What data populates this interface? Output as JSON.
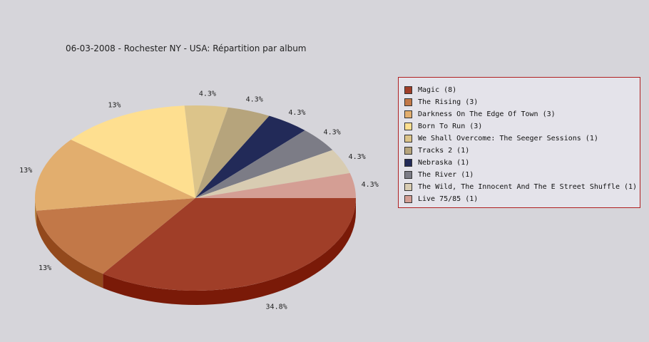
{
  "chart_data": {
    "type": "pie",
    "title": "06-03-2008 - Rochester NY - USA:  Répartition par album",
    "legend_position": "right",
    "slices": [
      {
        "label": "Magic (8)",
        "value": 8,
        "percent_label": "34.8%",
        "color": "#a03e28",
        "side_color": "#7a1a08"
      },
      {
        "label": "The Rising (3)",
        "value": 3,
        "percent_label": "13%",
        "color": "#c27848",
        "side_color": "#93491c"
      },
      {
        "label": "Darkness On The Edge Of Town (3)",
        "value": 3,
        "percent_label": "13%",
        "color": "#e2ae6e",
        "side_color": "#b58040"
      },
      {
        "label": "Born To Run (3)",
        "value": 3,
        "percent_label": "13%",
        "color": "#fedf90",
        "side_color": "#d0b060"
      },
      {
        "label": "We Shall Overcome: The Seeger Sessions (1)",
        "value": 1,
        "percent_label": "4.3%",
        "color": "#dcc48a",
        "side_color": "#ae965c"
      },
      {
        "label": "Tracks 2 (1)",
        "value": 1,
        "percent_label": "4.3%",
        "color": "#b6a47c",
        "side_color": "#88764e"
      },
      {
        "label": "Nebraska (1)",
        "value": 1,
        "percent_label": "4.3%",
        "color": "#222a58",
        "side_color": "#10163a"
      },
      {
        "label": "The River (1)",
        "value": 1,
        "percent_label": "4.3%",
        "color": "#7c7c86",
        "side_color": "#54545e"
      },
      {
        "label": "The Wild, The Innocent And The E Street Shuffle (1)",
        "value": 1,
        "percent_label": "4.3%",
        "color": "#d8ccb2",
        "side_color": "#aa9e84"
      },
      {
        "label": "Live 75/85 (1)",
        "value": 1,
        "percent_label": "4.3%",
        "color": "#d49e94",
        "side_color": "#a67066"
      }
    ]
  }
}
